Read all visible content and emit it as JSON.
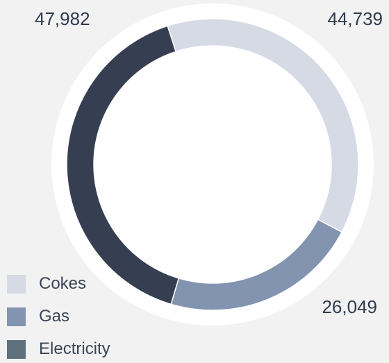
{
  "chart_data": {
    "type": "pie",
    "variant": "donut",
    "categories": [
      "Cokes",
      "Gas",
      "Electricity"
    ],
    "values": [
      44739,
      26049,
      47982
    ],
    "value_labels": [
      "44,739",
      "26,049",
      "47,982"
    ],
    "colors": [
      "#d5dae4",
      "#8294af",
      "#363f52"
    ],
    "legend_placement": "bottom-left",
    "legend_swatch_colors": [
      "#d5dae4",
      "#8294af",
      "#5f717d"
    ]
  }
}
